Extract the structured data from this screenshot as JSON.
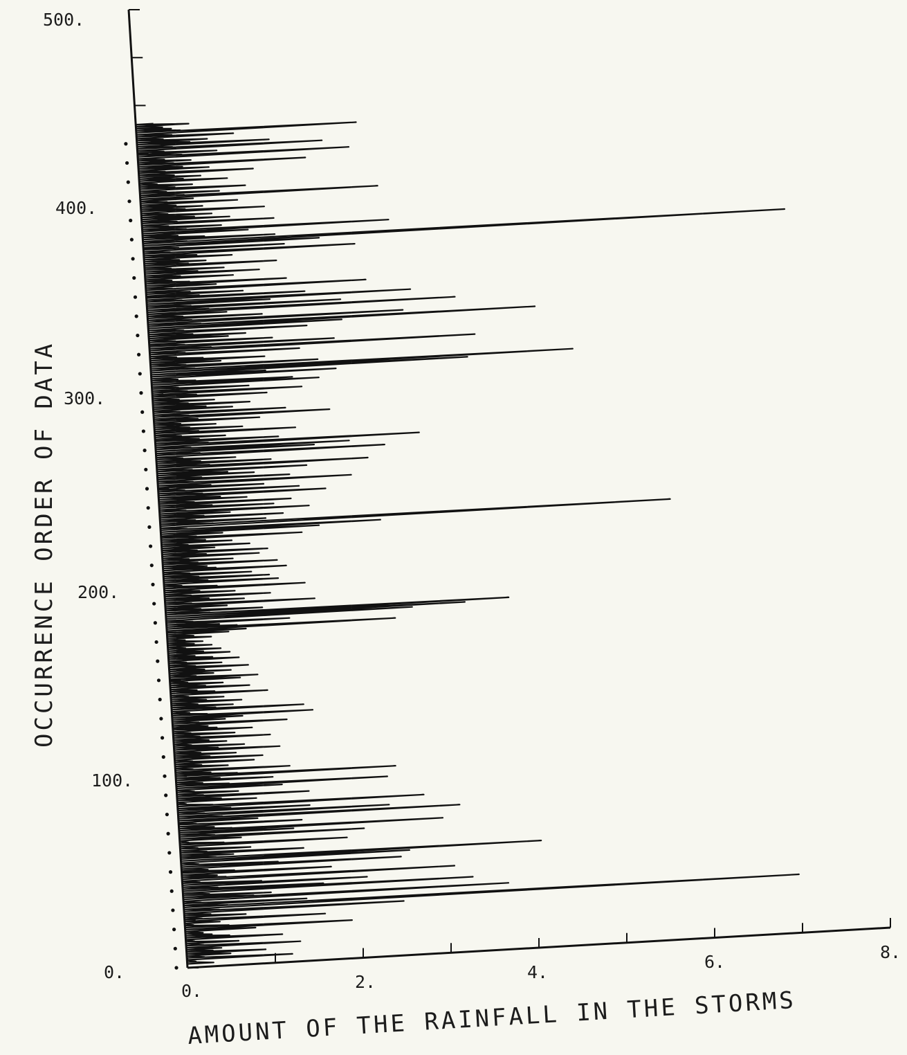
{
  "chart_data": {
    "type": "line",
    "orientation": "horizontal",
    "title": "",
    "xlabel": "AMOUNT OF THE RAINFALL IN THE STORMS",
    "ylabel": "OCCURRENCE ORDER OF DATA",
    "xlim": [
      0,
      8
    ],
    "ylim": [
      0,
      500
    ],
    "x_ticks": [
      "0.",
      "2.",
      "4.",
      "6.",
      "8."
    ],
    "y_ticks": [
      "0.",
      "100.",
      "200.",
      "300.",
      "400.",
      "500."
    ],
    "grid": false,
    "series": [
      {
        "values": [
          0.3,
          0.1,
          1.2,
          0.2,
          0.5,
          0.9,
          0.3,
          0.4,
          1.3,
          0.2,
          0.6,
          0.1,
          1.1,
          0.5,
          0.3,
          0.2,
          0.8,
          1.9,
          0.5,
          0.1,
          0.4,
          1.6,
          0.2,
          0.7,
          0.3,
          2.5,
          0.4,
          7.0,
          0.5,
          1.4,
          0.2,
          3.7,
          0.8,
          1.0,
          0.3,
          3.3,
          1.6,
          0.4,
          2.1,
          0.9,
          0.2,
          3.1,
          0.5,
          0.4,
          1.7,
          0.6,
          0.3,
          2.5,
          1.1,
          0.2,
          2.6,
          4.1,
          0.4,
          0.6,
          1.4,
          0.3,
          0.8,
          0.2,
          1.9,
          0.5,
          0.1,
          0.7,
          2.1,
          0.4,
          1.3,
          3.0,
          0.6,
          0.4,
          1.4,
          0.2,
          0.9,
          3.2,
          0.5,
          2.4,
          0.3,
          1.5,
          0.6,
          2.8,
          0.4,
          0.1,
          0.9,
          0.5,
          1.5,
          0.3,
          0.7,
          0.2,
          1.2,
          2.4,
          0.6,
          0.3,
          1.1,
          0.5,
          2.5,
          0.7,
          0.4,
          1.3,
          0.2,
          0.6,
          0.3,
          0.9,
          0.2,
          1.0,
          0.4,
          0.7,
          0.3,
          1.2,
          0.5,
          0.8,
          0.2,
          0.6,
          0.4,
          1.1,
          0.3,
          0.7,
          0.2,
          0.9,
          0.5,
          0.4,
          1.3,
          0.3,
          0.6,
          0.8,
          1.6,
          0.4,
          0.2,
          1.5,
          0.5,
          0.7,
          0.3,
          0.8,
          0.4,
          0.6,
          0.2,
          1.1,
          0.5,
          0.3,
          0.9,
          0.4,
          0.6,
          0.2,
          0.8,
          1.0,
          0.3,
          0.5,
          0.7,
          0.4,
          0.9,
          0.3,
          0.6,
          0.2,
          0.8,
          0.5,
          0.3,
          0.7,
          0.4,
          0.6,
          0.2,
          0.5,
          0.3,
          0.4,
          0.2,
          0.5,
          0.3,
          0.7,
          0.9,
          2.6,
          0.8,
          0.6,
          1.4,
          0.3,
          2.8,
          3.4,
          3.9,
          0.5,
          1.1,
          0.4,
          0.7,
          1.7,
          0.3,
          0.9,
          0.5,
          1.2,
          0.3,
          0.8,
          0.4,
          1.6,
          0.6,
          0.2,
          1.3,
          0.5,
          1.2,
          0.4,
          1.0,
          0.3,
          1.4,
          0.6,
          0.5,
          1.3,
          0.4,
          0.8,
          0.3,
          1.1,
          0.5,
          1.2,
          0.4,
          0.6,
          1.0,
          0.3,
          0.8,
          0.5,
          1.6,
          0.4,
          0.7,
          1.8,
          2.5,
          0.3,
          5.8,
          0.6,
          1.2,
          0.4,
          1.4,
          0.5,
          0.8,
          1.7,
          0.3,
          1.3,
          0.6,
          1.5,
          0.4,
          1.0,
          0.7,
          1.9,
          0.5,
          1.6,
          0.3,
          1.2,
          0.6,
          2.2,
          0.4,
          1.5,
          0.5,
          1.1,
          0.8,
          1.7,
          0.4,
          2.4,
          0.6,
          1.3,
          0.5,
          0.9,
          0.3,
          2.6,
          0.5,
          1.8,
          2.2,
          0.4,
          3.0,
          0.6,
          1.4,
          0.5,
          0.8,
          0.3,
          1.6,
          0.5,
          1.0,
          0.4,
          0.7,
          0.3,
          1.2,
          0.5,
          2.0,
          0.4,
          1.5,
          0.3,
          0.9,
          0.6,
          1.1,
          0.4,
          0.7,
          0.3,
          1.3,
          0.5,
          1.7,
          0.4,
          1.1,
          0.3,
          1.9,
          1.6,
          0.5,
          0.3,
          2.1,
          1.3,
          3.6,
          4.8,
          0.5,
          1.9,
          0.4,
          0.8,
          1.3,
          0.6,
          0.3,
          1.7,
          0.4,
          3.7,
          0.7,
          2.1,
          0.4,
          1.4,
          0.3,
          0.9,
          1.1,
          0.5,
          1.8,
          0.4,
          2.2,
          4.4,
          0.6,
          2.9,
          0.5,
          1.3,
          0.4,
          0.9,
          3.5,
          0.7,
          2.2,
          0.5,
          1.4,
          3.0,
          0.4,
          1.8,
          0.6,
          1.1,
          0.5,
          2.5,
          0.3,
          0.8,
          1.6,
          0.5,
          0.3,
          1.0,
          0.4,
          1.3,
          0.6,
          0.9,
          0.3,
          1.5,
          0.5,
          0.7,
          0.4,
          1.0,
          0.6,
          2.4,
          0.3,
          1.6,
          0.4,
          2.0,
          7.3,
          0.5,
          1.5,
          0.7,
          0.4,
          1.2,
          2.8,
          0.5,
          0.9,
          0.3,
          1.5,
          0.4,
          1.0,
          0.6,
          0.8,
          0.3,
          1.4,
          0.5,
          0.7,
          0.4,
          1.1,
          0.3,
          0.6,
          2.7,
          0.5,
          0.9,
          0.3,
          1.2,
          0.4,
          0.6,
          0.2,
          1.0,
          0.5,
          0.7,
          0.4,
          1.3,
          0.3,
          0.8,
          0.5,
          1.9,
          0.4,
          0.6,
          0.3,
          2.4,
          0.5,
          0.9,
          0.3,
          2.1,
          0.4,
          1.5,
          0.6,
          0.8,
          0.3,
          1.1,
          0.4,
          2.5,
          0.5,
          0.4,
          0.3,
          0.6,
          0.2
        ]
      }
    ]
  }
}
